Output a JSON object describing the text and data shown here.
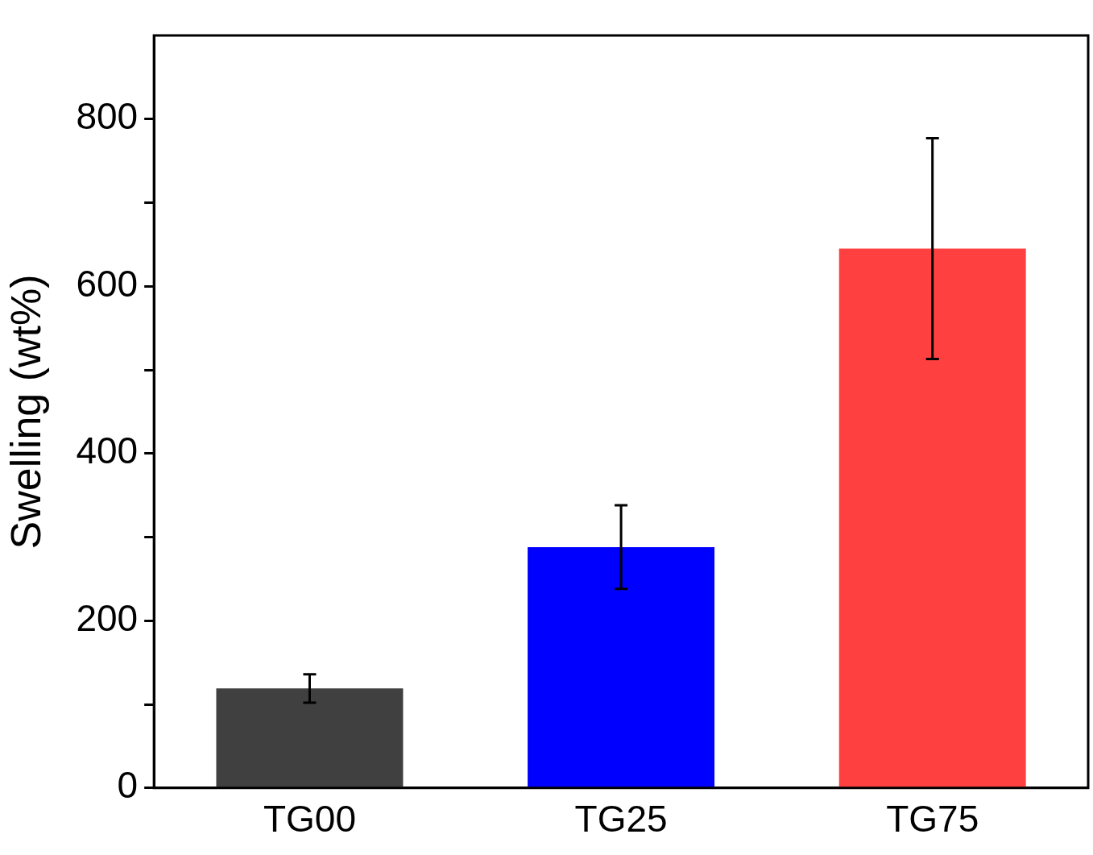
{
  "chart_data": {
    "type": "bar",
    "ylabel": "Swelling (wt%)",
    "categories": [
      "TG00",
      "TG25",
      "TG75"
    ],
    "values": [
      119,
      288,
      645
    ],
    "colors": [
      "#404040",
      "#0000ff",
      "#ff4040"
    ],
    "errors": [
      17,
      50,
      132
    ],
    "ylim": [
      0,
      900
    ],
    "yticks": [
      0,
      {
        "value": 100,
        "label": null
      },
      200,
      {
        "value": 300,
        "label": null
      },
      400,
      {
        "value": 500,
        "label": null
      },
      600,
      {
        "value": 700,
        "label": null
      },
      800
    ],
    "grid": false,
    "legend": false
  }
}
